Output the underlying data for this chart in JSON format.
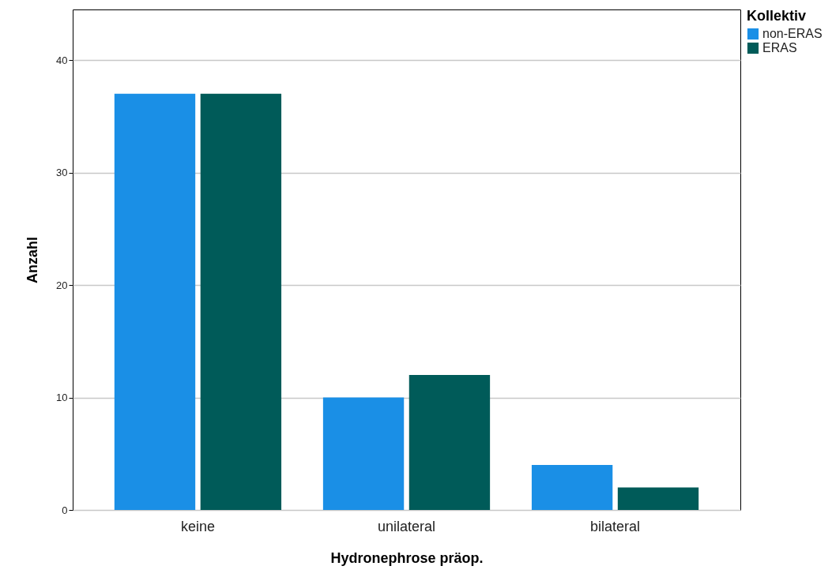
{
  "chart_data": {
    "type": "bar",
    "xlabel": "Hydronephrose präop.",
    "ylabel": "Anzahl",
    "legend_title": "Kollektiv",
    "categories": [
      "keine",
      "unilateral",
      "bilateral"
    ],
    "series": [
      {
        "name": "non-ERAS",
        "color": "#1a8fe6",
        "values": [
          37,
          10,
          4
        ]
      },
      {
        "name": "ERAS",
        "color": "#005b59",
        "values": [
          37,
          12,
          2
        ]
      }
    ],
    "ylim": [
      0,
      44.5
    ],
    "yticks": [
      0,
      10,
      20,
      30,
      40
    ],
    "grid": "y",
    "legend": "top right"
  }
}
